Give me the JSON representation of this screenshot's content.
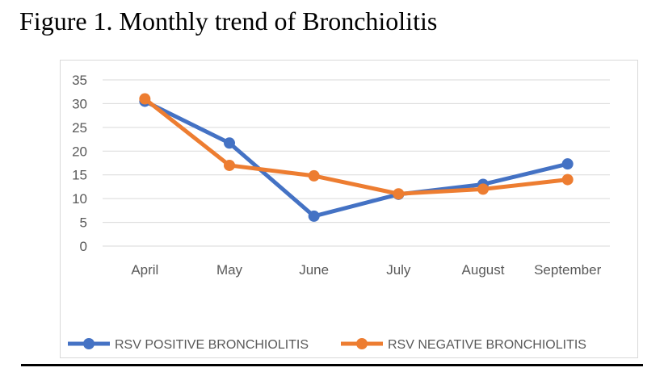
{
  "figure_title": "Figure 1. Monthly trend of Bronchiolitis",
  "chart_data": {
    "type": "line",
    "title": "",
    "xlabel": "",
    "ylabel": "",
    "categories": [
      "April",
      "May",
      "June",
      "July",
      "August",
      "September"
    ],
    "ylim": [
      0,
      35
    ],
    "yticks": [
      0,
      5,
      10,
      15,
      20,
      25,
      30,
      35
    ],
    "grid": true,
    "legend": "bottom-center",
    "series": [
      {
        "name": "RSV POSITIVE BRONCHIOLITIS",
        "color": "#4472c4",
        "values": [
          30.5,
          21.7,
          6.3,
          10.9,
          13.0,
          17.3
        ]
      },
      {
        "name": "RSV NEGATIVE BRONCHIOLITIS",
        "color": "#ed7d31",
        "values": [
          31.0,
          17.0,
          14.8,
          11.0,
          12.0,
          14.0
        ]
      }
    ]
  }
}
